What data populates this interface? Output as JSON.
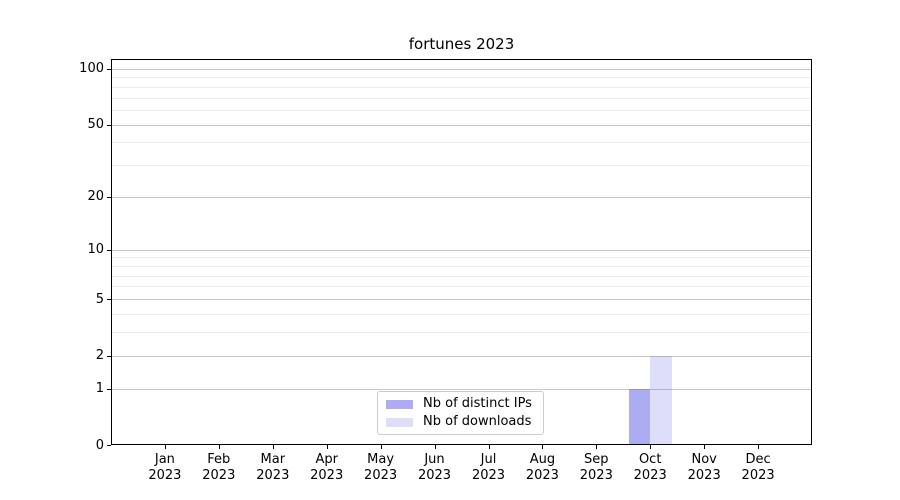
{
  "figure": {
    "background": "#ffffff"
  },
  "chart_data": {
    "type": "bar",
    "title": "fortunes 2023",
    "categories": [
      "Jan 2023",
      "Feb 2023",
      "Mar 2023",
      "Apr 2023",
      "May 2023",
      "Jun 2023",
      "Jul 2023",
      "Aug 2023",
      "Sep 2023",
      "Oct 2023",
      "Nov 2023",
      "Dec 2023"
    ],
    "series": [
      {
        "name": "Nb of distinct IPs",
        "color": "rgba(90,90,230,0.5)",
        "values": [
          0,
          0,
          0,
          0,
          0,
          0,
          0,
          0,
          0,
          1,
          0,
          0
        ]
      },
      {
        "name": "Nb of downloads",
        "color": "rgba(90,90,230,0.2)",
        "values": [
          0,
          0,
          0,
          0,
          0,
          0,
          0,
          0,
          0,
          2,
          0,
          0
        ]
      }
    ],
    "xlabel": "",
    "ylabel": "",
    "yscale": "log1p",
    "ylim": [
      0,
      113
    ],
    "yticks": [
      0,
      1,
      2,
      5,
      10,
      20,
      50,
      100
    ],
    "minor_yticks": [
      3,
      4,
      6,
      7,
      8,
      9,
      30,
      40,
      60,
      70,
      80,
      90
    ],
    "grid": true,
    "legend": {
      "position": "lower center"
    },
    "colors": {
      "grid_major": "#c9c9c9",
      "grid_minor": "#ececec",
      "axis": "#000000",
      "text": "#000000"
    }
  }
}
